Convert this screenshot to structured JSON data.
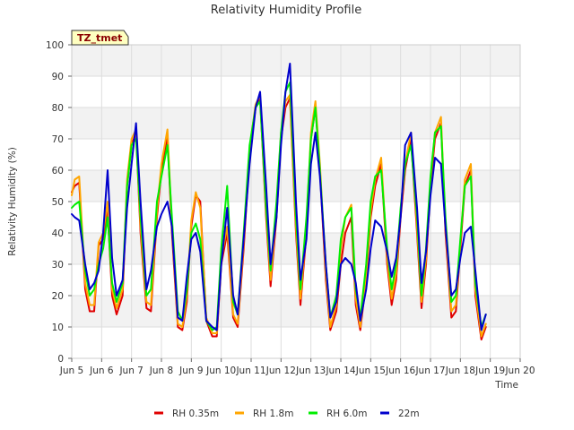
{
  "chart_data": {
    "type": "line",
    "title": "Relativity Humidity Profile",
    "xlabel": "Time",
    "ylabel": "Relativity Humidity (%)",
    "badge": "TZ_tmet",
    "xlim": [
      5,
      20
    ],
    "ylim": [
      0,
      100
    ],
    "x_ticks": [
      5,
      6,
      7,
      8,
      9,
      10,
      11,
      12,
      13,
      14,
      15,
      16,
      17,
      18,
      19,
      20
    ],
    "x_tick_labels": [
      "Jun 5",
      "Jun 6",
      "Jun 7",
      "Jun 8",
      "Jun 9",
      "Jun 10",
      "Jun 11",
      "Jun 12",
      "Jun 13",
      "Jun 14",
      "Jun 15",
      "Jun 16",
      "Jun 17",
      "Jun 18",
      "Jun 19",
      "Jun 20"
    ],
    "y_ticks": [
      0,
      10,
      20,
      30,
      40,
      50,
      60,
      70,
      80,
      90,
      100
    ],
    "y_tick_labels": [
      "0",
      "10",
      "20",
      "30",
      "40",
      "50",
      "60",
      "70",
      "80",
      "90",
      "100"
    ],
    "legend_position": "bottom-center",
    "series": [
      {
        "name": "RH 0.35m",
        "color": "#e00000",
        "x": [
          5.0,
          5.1,
          5.25,
          5.45,
          5.6,
          5.75,
          5.9,
          6.05,
          6.2,
          6.35,
          6.5,
          6.7,
          6.85,
          7.0,
          7.15,
          7.3,
          7.5,
          7.65,
          7.85,
          8.0,
          8.2,
          8.35,
          8.55,
          8.7,
          8.85,
          9.0,
          9.15,
          9.3,
          9.5,
          9.7,
          9.85,
          10.0,
          10.2,
          10.4,
          10.55,
          10.75,
          10.95,
          11.15,
          11.3,
          11.5,
          11.65,
          11.85,
          12.0,
          12.15,
          12.3,
          12.5,
          12.65,
          12.85,
          13.0,
          13.15,
          13.3,
          13.5,
          13.65,
          13.85,
          14.0,
          14.15,
          14.35,
          14.5,
          14.65,
          14.85,
          15.0,
          15.15,
          15.35,
          15.55,
          15.7,
          15.85,
          16.0,
          16.15,
          16.35,
          16.55,
          16.7,
          16.85,
          17.0,
          17.15,
          17.35,
          17.5,
          17.7,
          17.85,
          18.0,
          18.15,
          18.35,
          18.5,
          18.7,
          18.85
        ],
        "y": [
          53,
          55,
          56,
          22,
          15,
          15,
          36,
          38,
          47,
          20,
          14,
          20,
          55,
          68,
          72,
          40,
          16,
          15,
          45,
          60,
          71,
          40,
          10,
          9,
          18,
          42,
          52,
          50,
          12,
          7,
          7,
          30,
          40,
          13,
          10,
          35,
          65,
          80,
          83,
          45,
          23,
          45,
          70,
          80,
          83,
          40,
          17,
          40,
          70,
          80,
          60,
          25,
          9,
          15,
          30,
          40,
          45,
          17,
          9,
          25,
          45,
          55,
          62,
          30,
          17,
          25,
          45,
          60,
          70,
          40,
          16,
          30,
          55,
          70,
          75,
          40,
          13,
          15,
          35,
          55,
          60,
          20,
          6,
          10
        ]
      },
      {
        "name": "RH 1.8m",
        "color": "#ffa500",
        "x": [
          5.0,
          5.1,
          5.25,
          5.45,
          5.6,
          5.75,
          5.9,
          6.05,
          6.2,
          6.35,
          6.5,
          6.7,
          6.85,
          7.0,
          7.15,
          7.3,
          7.5,
          7.65,
          7.85,
          8.0,
          8.2,
          8.35,
          8.55,
          8.7,
          8.85,
          9.0,
          9.15,
          9.3,
          9.5,
          9.7,
          9.85,
          10.0,
          10.2,
          10.4,
          10.55,
          10.75,
          10.95,
          11.15,
          11.3,
          11.5,
          11.65,
          11.85,
          12.0,
          12.15,
          12.3,
          12.5,
          12.65,
          12.85,
          13.0,
          13.15,
          13.3,
          13.5,
          13.65,
          13.85,
          14.0,
          14.15,
          14.35,
          14.5,
          14.65,
          14.85,
          15.0,
          15.15,
          15.35,
          15.55,
          15.7,
          15.85,
          16.0,
          16.15,
          16.35,
          16.55,
          16.7,
          16.85,
          17.0,
          17.15,
          17.35,
          17.5,
          17.7,
          17.85,
          18.0,
          18.15,
          18.35,
          18.5,
          18.7,
          18.85
        ],
        "y": [
          52,
          57,
          58,
          24,
          17,
          17,
          37,
          40,
          50,
          22,
          16,
          22,
          57,
          70,
          73,
          42,
          18,
          17,
          47,
          62,
          73,
          42,
          11,
          10,
          20,
          44,
          53,
          48,
          13,
          8,
          8,
          32,
          42,
          14,
          11,
          37,
          67,
          81,
          84,
          47,
          25,
          47,
          72,
          82,
          84,
          42,
          19,
          42,
          72,
          82,
          62,
          27,
          10,
          17,
          35,
          45,
          49,
          19,
          10,
          27,
          47,
          57,
          64,
          32,
          19,
          27,
          47,
          62,
          72,
          42,
          18,
          32,
          57,
          72,
          77,
          42,
          15,
          17,
          37,
          57,
          62,
          22,
          7,
          11
        ]
      },
      {
        "name": "RH 6.0m",
        "color": "#00ee00",
        "x": [
          5.0,
          5.1,
          5.25,
          5.45,
          5.6,
          5.75,
          5.9,
          6.05,
          6.2,
          6.35,
          6.5,
          6.7,
          6.85,
          7.0,
          7.15,
          7.3,
          7.5,
          7.65,
          7.85,
          8.0,
          8.2,
          8.35,
          8.55,
          8.7,
          8.85,
          9.0,
          9.15,
          9.3,
          9.5,
          9.7,
          9.85,
          10.0,
          10.2,
          10.4,
          10.55,
          10.75,
          10.95,
          11.15,
          11.3,
          11.5,
          11.65,
          11.85,
          12.0,
          12.15,
          12.3,
          12.5,
          12.65,
          12.85,
          13.0,
          13.15,
          13.3,
          13.5,
          13.65,
          13.85,
          14.0,
          14.15,
          14.35,
          14.5,
          14.65,
          14.85,
          15.0,
          15.15,
          15.35,
          15.55,
          15.7,
          15.85,
          16.0,
          16.15,
          16.35,
          16.55,
          16.7,
          16.85,
          17.0,
          17.15,
          17.35,
          17.5,
          17.7,
          17.85,
          18.0,
          18.15,
          18.35,
          18.5,
          18.7,
          18.85
        ],
        "y": [
          48,
          49,
          50,
          28,
          20,
          22,
          30,
          35,
          45,
          24,
          18,
          24,
          55,
          68,
          70,
          45,
          20,
          22,
          50,
          58,
          68,
          45,
          15,
          12,
          22,
          40,
          43,
          38,
          12,
          9,
          10,
          35,
          55,
          18,
          14,
          40,
          68,
          80,
          82,
          48,
          28,
          50,
          72,
          85,
          88,
          45,
          22,
          45,
          70,
          80,
          60,
          30,
          13,
          20,
          38,
          45,
          48,
          22,
          13,
          30,
          50,
          58,
          60,
          35,
          22,
          30,
          48,
          62,
          68,
          45,
          20,
          35,
          58,
          72,
          74,
          45,
          18,
          20,
          38,
          55,
          58,
          24,
          10,
          14
        ]
      },
      {
        "name": "22m",
        "color": "#0000cc",
        "x": [
          5.0,
          5.1,
          5.25,
          5.45,
          5.6,
          5.75,
          5.9,
          6.05,
          6.2,
          6.35,
          6.5,
          6.7,
          6.85,
          7.0,
          7.15,
          7.3,
          7.5,
          7.65,
          7.85,
          8.0,
          8.2,
          8.35,
          8.55,
          8.7,
          8.85,
          9.0,
          9.15,
          9.3,
          9.5,
          9.7,
          9.85,
          10.0,
          10.2,
          10.4,
          10.55,
          10.75,
          10.95,
          11.15,
          11.3,
          11.5,
          11.65,
          11.85,
          12.0,
          12.15,
          12.3,
          12.5,
          12.65,
          12.85,
          13.0,
          13.15,
          13.3,
          13.5,
          13.65,
          13.85,
          14.0,
          14.15,
          14.35,
          14.5,
          14.65,
          14.85,
          15.0,
          15.15,
          15.35,
          15.55,
          15.7,
          15.85,
          16.0,
          16.15,
          16.35,
          16.55,
          16.7,
          16.85,
          17.0,
          17.15,
          17.35,
          17.5,
          17.7,
          17.85,
          18.0,
          18.15,
          18.35,
          18.5,
          18.7,
          18.85
        ],
        "y": [
          46,
          45,
          44,
          30,
          22,
          24,
          28,
          40,
          60,
          32,
          20,
          25,
          48,
          62,
          75,
          50,
          22,
          28,
          42,
          46,
          50,
          42,
          13,
          12,
          26,
          38,
          40,
          34,
          12,
          10,
          9,
          30,
          48,
          20,
          14,
          38,
          62,
          80,
          85,
          55,
          30,
          45,
          68,
          85,
          94,
          50,
          25,
          38,
          62,
          72,
          58,
          30,
          13,
          18,
          30,
          32,
          30,
          24,
          12,
          22,
          35,
          44,
          42,
          34,
          26,
          32,
          45,
          68,
          72,
          48,
          24,
          34,
          52,
          64,
          62,
          42,
          20,
          22,
          32,
          40,
          42,
          28,
          9,
          14
        ]
      }
    ]
  }
}
